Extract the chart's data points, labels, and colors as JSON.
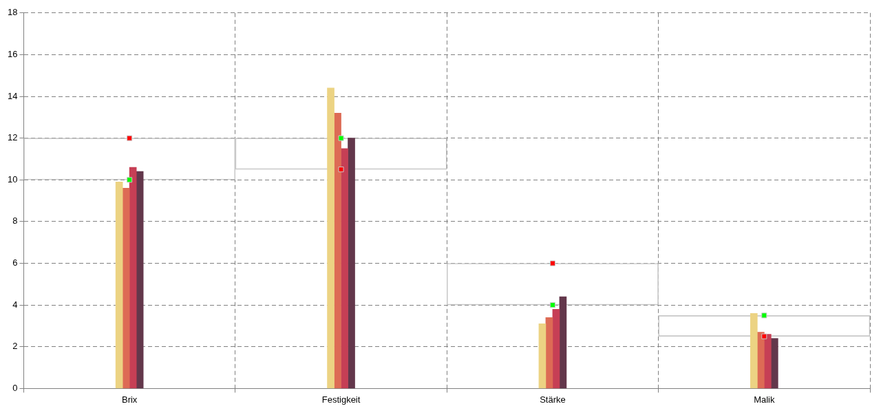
{
  "chart_data": {
    "type": "bar",
    "categories": [
      "Brix",
      "Festigkeit",
      "Stärke",
      "Malik"
    ],
    "ylim": [
      0,
      18
    ],
    "yticks": [
      0,
      2,
      4,
      6,
      8,
      10,
      12,
      14,
      16,
      18
    ],
    "grid": true,
    "legend": false,
    "series": [
      {
        "type": "bar",
        "base": [
          10,
          10.5,
          4,
          2.5
        ],
        "values": [
          2,
          1.5,
          2,
          1
        ],
        "color": "#c8c8c8"
      },
      {
        "color": "#ecd383",
        "values": [
          9.9,
          14.4,
          3.1,
          3.6
        ]
      },
      {
        "color": "#dd6b55",
        "values": [
          9.6,
          13.2,
          3.4,
          2.7
        ]
      },
      {
        "color": "#c63f55",
        "values": [
          10.6,
          11.5,
          3.8,
          2.6
        ]
      },
      {
        "color": "#63374b",
        "values": [
          10.4,
          12.0,
          4.4,
          2.4
        ]
      },
      {
        "type": "scatter",
        "marker": "square",
        "color": "#00ff00",
        "x": [
          "Brix",
          "Festigkeit",
          "Stärke",
          "Malik"
        ],
        "values": [
          10,
          12,
          4,
          3.5
        ]
      },
      {
        "type": "scatter",
        "marker": "square",
        "color": "#ff0000",
        "x": [
          "Brix",
          "Festigkeit",
          "Stärke",
          "Malik"
        ],
        "values": [
          12,
          10.5,
          6,
          2.5
        ]
      }
    ]
  }
}
